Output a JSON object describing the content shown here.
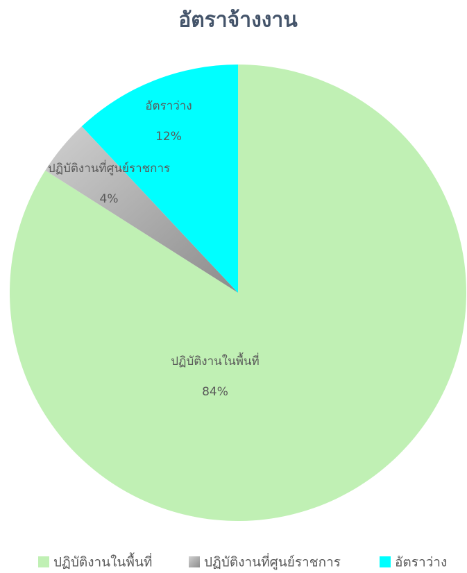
{
  "chart_data": {
    "type": "pie",
    "title": "อัตราจ้างงาน",
    "categories": [
      "ปฏิบัติงานในพื้นที่",
      "ปฏิบัติงานที่ศูนย์ราชการ",
      "อัตราว่าง"
    ],
    "values": [
      84,
      4,
      12
    ],
    "value_labels": [
      "84%",
      "4%",
      "12%"
    ],
    "colors": [
      "#c0f0b4",
      "#a6a6a6",
      "#00ffff"
    ],
    "legend": "bottom"
  }
}
